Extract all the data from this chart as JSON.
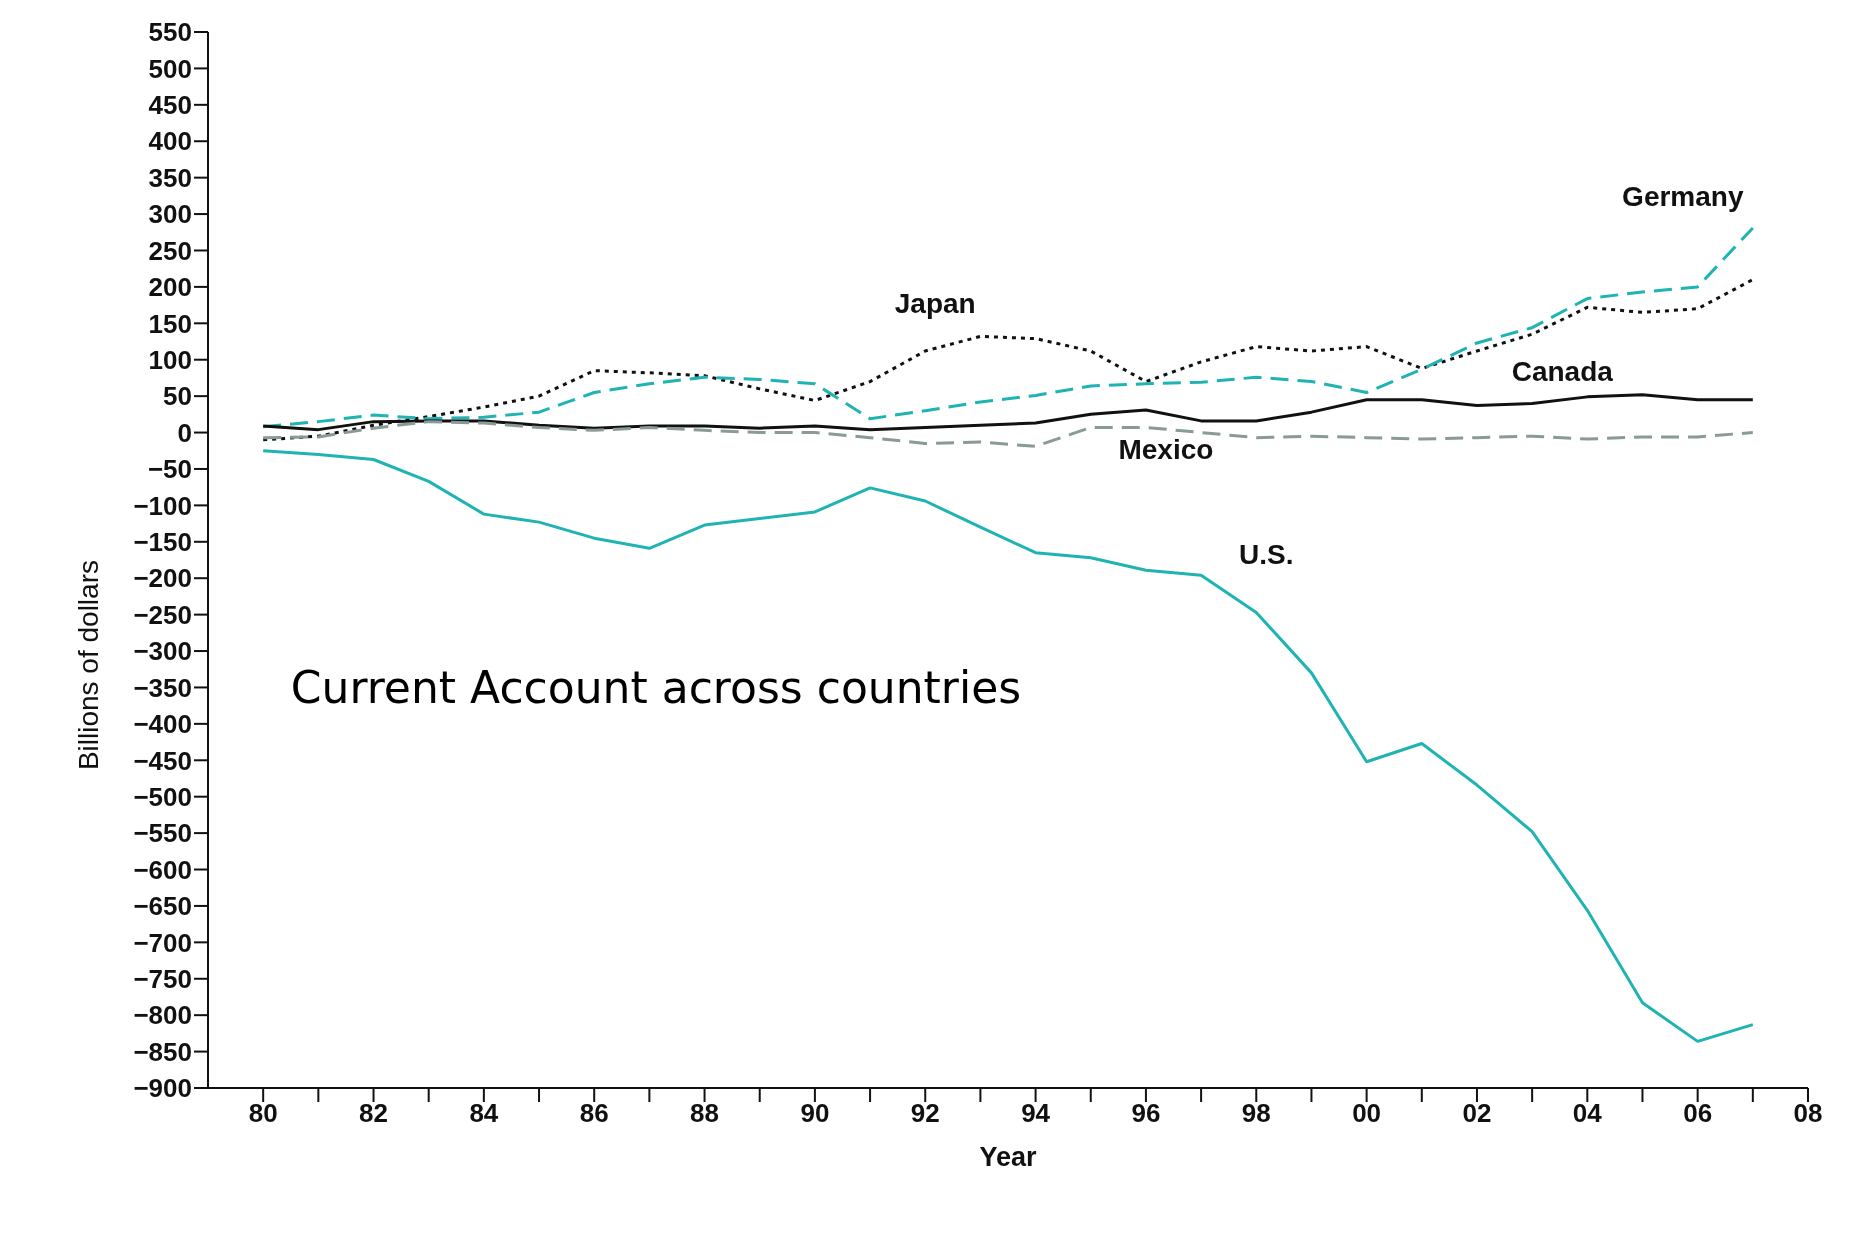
{
  "chart_data": {
    "type": "line",
    "title": "Current Account across countries",
    "xlabel": "Year",
    "ylabel": "Billions of dollars",
    "x": [
      1980,
      1981,
      1982,
      1983,
      1984,
      1985,
      1986,
      1987,
      1988,
      1989,
      1990,
      1991,
      1992,
      1993,
      1994,
      1995,
      1996,
      1997,
      1998,
      1999,
      2000,
      2001,
      2002,
      2003,
      2004,
      2005,
      2006,
      2007
    ],
    "series": [
      {
        "name": "Japan",
        "color": "#111111",
        "line_style": "dotted",
        "values": [
          -10,
          -5,
          10,
          22,
          35,
          50,
          85,
          82,
          78,
          60,
          44,
          70,
          112,
          132,
          129,
          112,
          70,
          97,
          118,
          112,
          118,
          88,
          112,
          135,
          172,
          165,
          170,
          210
        ]
      },
      {
        "name": "Germany",
        "color": "#1fb3b3",
        "line_style": "dashed",
        "values": [
          8,
          15,
          24,
          19,
          21,
          28,
          55,
          67,
          76,
          73,
          67,
          19,
          30,
          42,
          51,
          64,
          67,
          69,
          76,
          70,
          55,
          87,
          123,
          144,
          184,
          193,
          200,
          281
        ]
      },
      {
        "name": "Canada",
        "color": "#111111",
        "line_style": "solid",
        "values": [
          9,
          4,
          15,
          16,
          16,
          10,
          6,
          9,
          9,
          6,
          9,
          4,
          7,
          10,
          13,
          25,
          31,
          16,
          16,
          28,
          45,
          45,
          37,
          40,
          49,
          52,
          45,
          45
        ]
      },
      {
        "name": "Mexico",
        "color": "#8a9a96",
        "line_style": "dashed",
        "values": [
          -7,
          -6,
          6,
          15,
          13,
          7,
          3,
          7,
          3,
          0,
          0,
          -7,
          -15,
          -13,
          -19,
          7,
          7,
          0,
          -7,
          -5,
          -7,
          -9,
          -7,
          -5,
          -9,
          -6,
          -6,
          0
        ]
      },
      {
        "name": "U.S.",
        "color": "#1fb3b3",
        "line_style": "solid",
        "values": [
          -25,
          -30,
          -37,
          -67,
          -112,
          -123,
          -145,
          -159,
          -127,
          -118,
          -109,
          -76,
          -94,
          -130,
          -165,
          -172,
          -189,
          -196,
          -247,
          -330,
          -452,
          -427,
          -484,
          -548,
          -656,
          -783,
          -836,
          -813
        ]
      }
    ],
    "xlim": [
      1979,
      2008
    ],
    "xticks": [
      {
        "value": 1980,
        "label": "80"
      },
      {
        "value": 1981,
        "label": null
      },
      {
        "value": 1982,
        "label": "82"
      },
      {
        "value": 1983,
        "label": null
      },
      {
        "value": 1984,
        "label": "84"
      },
      {
        "value": 1985,
        "label": null
      },
      {
        "value": 1986,
        "label": "86"
      },
      {
        "value": 1987,
        "label": null
      },
      {
        "value": 1988,
        "label": "88"
      },
      {
        "value": 1989,
        "label": null
      },
      {
        "value": 1990,
        "label": "90"
      },
      {
        "value": 1991,
        "label": null
      },
      {
        "value": 1992,
        "label": "92"
      },
      {
        "value": 1993,
        "label": null
      },
      {
        "value": 1994,
        "label": "94"
      },
      {
        "value": 1995,
        "label": null
      },
      {
        "value": 1996,
        "label": "96"
      },
      {
        "value": 1997,
        "label": null
      },
      {
        "value": 1998,
        "label": "98"
      },
      {
        "value": 1999,
        "label": null
      },
      {
        "value": 2000,
        "label": "00"
      },
      {
        "value": 2001,
        "label": null
      },
      {
        "value": 2002,
        "label": "02"
      },
      {
        "value": 2003,
        "label": null
      },
      {
        "value": 2004,
        "label": "04"
      },
      {
        "value": 2005,
        "label": null
      },
      {
        "value": 2006,
        "label": "06"
      },
      {
        "value": 2007,
        "label": null
      },
      {
        "value": 2008,
        "label": "08"
      }
    ],
    "ylim": [
      -900,
      550
    ],
    "yticks": [
      -900,
      -850,
      -800,
      -750,
      -700,
      -650,
      -600,
      -550,
      -500,
      -450,
      -400,
      -350,
      -300,
      -250,
      -200,
      -150,
      -100,
      -50,
      0,
      50,
      100,
      150,
      200,
      250,
      300,
      350,
      400,
      450,
      500,
      550
    ],
    "grid": false,
    "legend": false,
    "marker": "none"
  }
}
